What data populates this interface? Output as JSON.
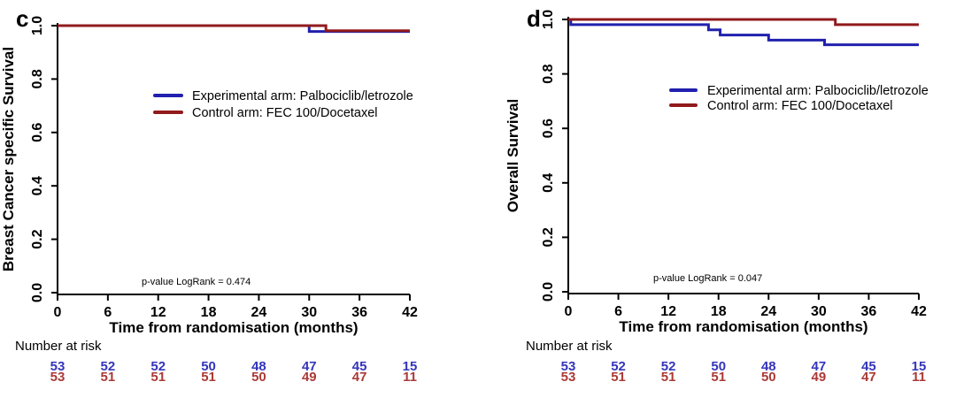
{
  "figure": {
    "background": "#ffffff",
    "text_color": "#000000"
  },
  "chart_data": [
    {
      "type": "line",
      "subtype": "kaplan-meier-step",
      "panel_label": "c",
      "xlabel": "Time from randomisation (months)",
      "ylabel": "Breast Cancer specific Survival",
      "xlim": [
        0,
        42
      ],
      "ylim": [
        0.0,
        1.0
      ],
      "xticks": [
        0,
        6,
        12,
        18,
        24,
        30,
        36,
        42
      ],
      "ytick_labels": [
        "0.0",
        "0.2",
        "0.4",
        "0.6",
        "0.8",
        "1.0"
      ],
      "grid": false,
      "legend_position": "inside-upper-center",
      "annotation": "p-value LogRank = 0.474",
      "series": [
        {
          "name": "Experimental arm: Palbociclib/letrozole",
          "color": "#2120ae",
          "points": [
            [
              0,
              1.0
            ],
            [
              30,
              1.0
            ],
            [
              30,
              0.978
            ],
            [
              42,
              0.978
            ]
          ]
        },
        {
          "name": "Control arm: FEC 100/Docetaxel",
          "color": "#911a1c",
          "points": [
            [
              0,
              1.0
            ],
            [
              32,
              1.0
            ],
            [
              32,
              0.981
            ],
            [
              42,
              0.981
            ]
          ]
        }
      ],
      "number_at_risk": {
        "label": "Number at risk",
        "times": [
          0,
          6,
          12,
          18,
          24,
          30,
          36,
          42
        ],
        "rows": [
          {
            "series": "Experimental arm: Palbociclib/letrozole",
            "color": "#3435bb",
            "values": [
              53,
              52,
              52,
              50,
              48,
              47,
              45,
              15
            ]
          },
          {
            "series": "Control arm: FEC 100/Docetaxel",
            "color": "#ab3a36",
            "values": [
              53,
              51,
              51,
              51,
              50,
              49,
              47,
              11
            ]
          }
        ]
      }
    },
    {
      "type": "line",
      "subtype": "kaplan-meier-step",
      "panel_label": "d",
      "xlabel": "Time from randomisation (months)",
      "ylabel": "Overall Survival",
      "xlim": [
        0,
        42
      ],
      "ylim": [
        0.0,
        1.0
      ],
      "xticks": [
        0,
        6,
        12,
        18,
        24,
        30,
        36,
        42
      ],
      "ytick_labels": [
        "0.0",
        "0.2",
        "0.4",
        "0.6",
        "0.8",
        "1.0"
      ],
      "grid": false,
      "legend_position": "inside-upper-center",
      "annotation": "p-value LogRank = 0.047",
      "series": [
        {
          "name": "Experimental arm: Palbociclib/letrozole",
          "color": "#2120ae",
          "points": [
            [
              0,
              1.0
            ],
            [
              0.3,
              1.0
            ],
            [
              0.3,
              0.981
            ],
            [
              16.8,
              0.981
            ],
            [
              16.8,
              0.962
            ],
            [
              18.2,
              0.962
            ],
            [
              18.2,
              0.943
            ],
            [
              24,
              0.943
            ],
            [
              24,
              0.924
            ],
            [
              30.7,
              0.924
            ],
            [
              30.7,
              0.907
            ],
            [
              42,
              0.907
            ]
          ]
        },
        {
          "name": "Control arm: FEC 100/Docetaxel",
          "color": "#911a1c",
          "points": [
            [
              0,
              1.0
            ],
            [
              32,
              1.0
            ],
            [
              32,
              0.981
            ],
            [
              42,
              0.981
            ]
          ]
        }
      ],
      "number_at_risk": {
        "label": "Number at risk",
        "times": [
          0,
          6,
          12,
          18,
          24,
          30,
          36,
          42
        ],
        "rows": [
          {
            "series": "Experimental arm: Palbociclib/letrozole",
            "color": "#3435bb",
            "values": [
              53,
              52,
              52,
              50,
              48,
              47,
              45,
              15
            ]
          },
          {
            "series": "Control arm: FEC 100/Docetaxel",
            "color": "#ab3a36",
            "values": [
              53,
              51,
              51,
              51,
              50,
              49,
              47,
              11
            ]
          }
        ]
      }
    }
  ]
}
